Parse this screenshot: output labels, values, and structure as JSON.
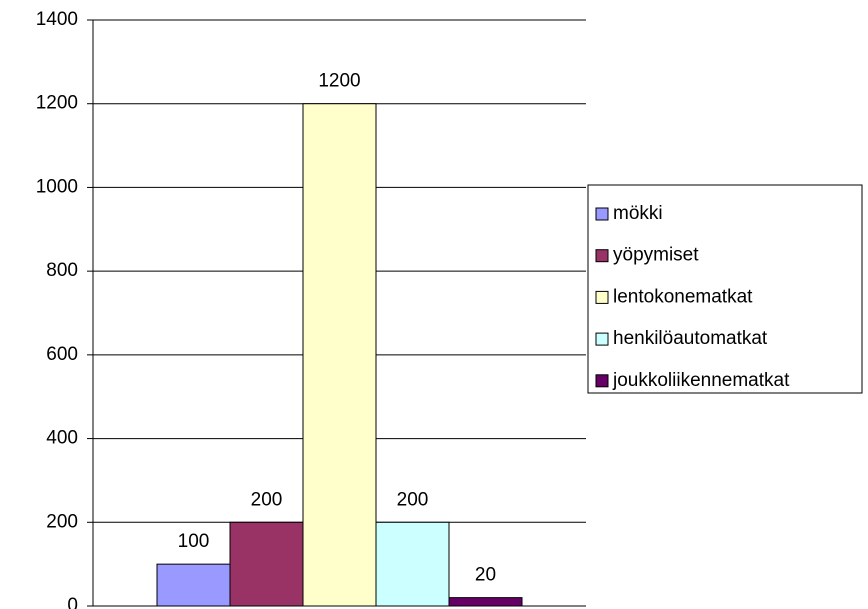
{
  "chart_data": {
    "type": "bar",
    "categories": [
      null
    ],
    "series": [
      {
        "name": "mökki",
        "color": "#9999ff",
        "values": [
          100
        ]
      },
      {
        "name": "yöpymiset",
        "color": "#993366",
        "values": [
          200
        ]
      },
      {
        "name": "lentokonematkat",
        "color": "#ffffcc",
        "values": [
          1200
        ]
      },
      {
        "name": "henkilöautomatkat",
        "color": "#ccffff",
        "values": [
          200
        ]
      },
      {
        "name": "joukkoliikennematkat",
        "color": "#660066",
        "values": [
          20
        ]
      }
    ],
    "ylim": [
      0,
      1400
    ],
    "yticks": [
      0,
      200,
      400,
      600,
      800,
      1000,
      1200,
      1400
    ],
    "grid": true,
    "legend": "right"
  }
}
